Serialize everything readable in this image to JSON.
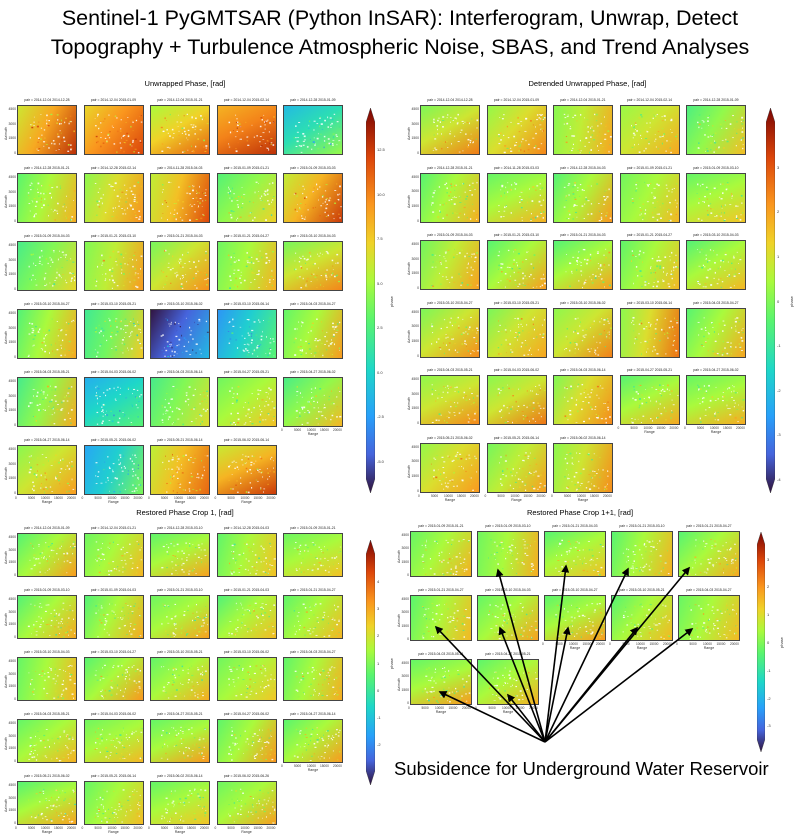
{
  "title": "Sentinel-1 PyGMTSAR (Python InSAR): Interferogram, Unwrap, Detect\nTopography + Turbulence Atmospheric Noise, SBAS, and Trend Analyses",
  "annotation": "Subsidence for Underground Water Reservoir",
  "colors": {
    "accent": "#000000"
  },
  "chart_data": [
    {
      "type": "heatmap",
      "title": "Unwrapped Phase, [rad]",
      "xlabel": "Range",
      "ylabel": "Azimuth",
      "x_ticks": [
        "0",
        "5000",
        "10000",
        "15000",
        "20000"
      ],
      "y_ticks": [
        "4500",
        "3000",
        "1500",
        "0"
      ],
      "colorbar_ticks": [
        "12.5",
        "10.0",
        "7.5",
        "5.0",
        "2.5",
        "0.0",
        "-2.5",
        "-5.0"
      ],
      "colorbar_label": "phase",
      "clim": [
        -6,
        14
      ],
      "columns": 5,
      "pairs": [
        {
          "label": "pair = 2014-12-04 2014-12-28",
          "level": 0.72
        },
        {
          "label": "pair = 2014-12-04 2015-01-09",
          "level": 0.75
        },
        {
          "label": "pair = 2014-12-04 2015-01-21",
          "level": 0.65
        },
        {
          "label": "pair = 2014-12-04 2015-02-14",
          "level": 0.78
        },
        {
          "label": "pair = 2014-12-28 2015-01-09",
          "level": 0.35
        },
        {
          "label": "pair = 2014-12-28 2015-01-21",
          "level": 0.55
        },
        {
          "label": "pair = 2014-12-28 2015-02-14",
          "level": 0.62
        },
        {
          "label": "pair = 2014-11-28 2015-04-03",
          "level": 0.68
        },
        {
          "label": "pair = 2015-01-09 2015-01-21",
          "level": 0.52
        },
        {
          "label": "pair = 2015-01-09 2015-03-03",
          "level": 0.7
        },
        {
          "label": "pair = 2015-01-09 2015-04-03",
          "level": 0.5
        },
        {
          "label": "pair = 2015-01-21 2015-03-10",
          "level": 0.58
        },
        {
          "label": "pair = 2015-01-21 2015-04-03",
          "level": 0.6
        },
        {
          "label": "pair = 2015-01-21 2015-04-27",
          "level": 0.55
        },
        {
          "label": "pair = 2015-03-10 2015-04-03",
          "level": 0.6
        },
        {
          "label": "pair = 2015-03-10 2015-04-27",
          "level": 0.55
        },
        {
          "label": "pair = 2015-03-10 2015-05-21",
          "level": 0.48
        },
        {
          "label": "pair = 2015-03-10 2015-06-02",
          "level": 0.1
        },
        {
          "label": "pair = 2015-03-10 2015-06-14",
          "level": 0.3
        },
        {
          "label": "pair = 2015-04-03 2015-04-27",
          "level": 0.55
        },
        {
          "label": "pair = 2015-04-03 2015-05-21",
          "level": 0.52
        },
        {
          "label": "pair = 2015-04-03 2015-06-02",
          "level": 0.32
        },
        {
          "label": "pair = 2015-04-03 2015-06-14",
          "level": 0.5
        },
        {
          "label": "pair = 2015-04-27 2015-05-21",
          "level": 0.55
        },
        {
          "label": "pair = 2015-04-27 2015-06-02",
          "level": 0.52
        },
        {
          "label": "pair = 2015-04-27 2015-06-14",
          "level": 0.6
        },
        {
          "label": "pair = 2015-05-21 2015-06-02",
          "level": 0.3
        },
        {
          "label": "pair = 2015-05-21 2015-06-14",
          "level": 0.68
        },
        {
          "label": "pair = 2015-06-02 2015-06-14",
          "level": 0.7
        }
      ]
    },
    {
      "type": "heatmap",
      "title": "Detrended Unwrapped Phase, [rad]",
      "xlabel": "Range",
      "ylabel": "Azimuth",
      "x_ticks": [
        "0",
        "5000",
        "10000",
        "15000",
        "20000"
      ],
      "y_ticks": [
        "4500",
        "3000",
        "1500",
        "0"
      ],
      "colorbar_ticks": [
        "3",
        "2",
        "1",
        "0",
        "-1",
        "-2",
        "-3",
        "-4"
      ],
      "colorbar_label": "phase",
      "clim": [
        -4,
        4
      ],
      "columns": 5,
      "pairs": [
        {
          "label": "pair = 2014-12-04 2014-12-28",
          "level": 0.6
        },
        {
          "label": "pair = 2014-12-04 2015-01-09",
          "level": 0.62
        },
        {
          "label": "pair = 2014-12-04 2015-01-21",
          "level": 0.58
        },
        {
          "label": "pair = 2014-12-04 2015-02-14",
          "level": 0.6
        },
        {
          "label": "pair = 2014-12-28 2015-01-09",
          "level": 0.52
        },
        {
          "label": "pair = 2014-12-28 2015-01-21",
          "level": 0.55
        },
        {
          "label": "pair = 2014-11-28 2015-03-03",
          "level": 0.55
        },
        {
          "label": "pair = 2014-12-28 2015-04-03",
          "level": 0.55
        },
        {
          "label": "pair = 2015-01-09 2015-01-21",
          "level": 0.55
        },
        {
          "label": "pair = 2015-01-09 2015-03-10",
          "level": 0.55
        },
        {
          "label": "pair = 2015-01-09 2015-04-03",
          "level": 0.58
        },
        {
          "label": "pair = 2015-01-21 2015-03-10",
          "level": 0.55
        },
        {
          "label": "pair = 2015-01-21 2015-04-03",
          "level": 0.55
        },
        {
          "label": "pair = 2015-01-21 2015-04-27",
          "level": 0.55
        },
        {
          "label": "pair = 2015-03-10 2015-04-03",
          "level": 0.55
        },
        {
          "label": "pair = 2015-03-10 2015-04-27",
          "level": 0.6
        },
        {
          "label": "pair = 2015-03-10 2015-05-21",
          "level": 0.6
        },
        {
          "label": "pair = 2015-03-10 2015-06-02",
          "level": 0.6
        },
        {
          "label": "pair = 2015-03-10 2015-06-14",
          "level": 0.62
        },
        {
          "label": "pair = 2015-04-03 2015-04-27",
          "level": 0.55
        },
        {
          "label": "pair = 2015-04-03 2015-05-21",
          "level": 0.6
        },
        {
          "label": "pair = 2015-04-03 2015-06-02",
          "level": 0.6
        },
        {
          "label": "pair = 2015-04-03 2015-06-14",
          "level": 0.62
        },
        {
          "label": "pair = 2015-04-27 2015-05-21",
          "level": 0.55
        },
        {
          "label": "pair = 2015-04-27 2015-06-02",
          "level": 0.55
        },
        {
          "label": "pair = 2015-05-21 2015-06-02",
          "level": 0.62
        },
        {
          "label": "pair = 2015-05-21 2015-06-14",
          "level": 0.58
        },
        {
          "label": "pair = 2015-06-02 2015-06-14",
          "level": 0.6
        }
      ]
    },
    {
      "type": "heatmap",
      "title": "Restored Phase Crop 1, [rad]",
      "xlabel": "Range",
      "ylabel": "Azimuth",
      "x_ticks": [
        "0",
        "5000",
        "10000",
        "15000",
        "20000"
      ],
      "y_ticks": [
        "4500",
        "3000",
        "1500",
        "0"
      ],
      "colorbar_ticks": [
        "4",
        "3",
        "2",
        "1",
        "0",
        "-1",
        "-2"
      ],
      "colorbar_label": "phase",
      "clim": [
        -3,
        5
      ],
      "columns": 5,
      "pairs": [
        {
          "label": "pair = 2014-12-04 2015-01-09",
          "level": 0.55
        },
        {
          "label": "pair = 2014-12-04 2015-01-21",
          "level": 0.55
        },
        {
          "label": "pair = 2014-12-28 2015-03-10",
          "level": 0.55
        },
        {
          "label": "pair = 2014-12-28 2015-04-03",
          "level": 0.55
        },
        {
          "label": "pair = 2015-01-09 2015-01-21",
          "level": 0.55
        },
        {
          "label": "pair = 2015-01-09 2015-03-10",
          "level": 0.55
        },
        {
          "label": "pair = 2015-01-09 2015-04-03",
          "level": 0.55
        },
        {
          "label": "pair = 2015-01-21 2015-03-10",
          "level": 0.55
        },
        {
          "label": "pair = 2015-01-21 2015-04-03",
          "level": 0.55
        },
        {
          "label": "pair = 2015-01-21 2015-04-27",
          "level": 0.55
        },
        {
          "label": "pair = 2015-03-10 2015-04-03",
          "level": 0.55
        },
        {
          "label": "pair = 2015-03-10 2015-04-27",
          "level": 0.55
        },
        {
          "label": "pair = 2015-03-10 2015-05-21",
          "level": 0.55
        },
        {
          "label": "pair = 2015-03-10 2015-06-02",
          "level": 0.55
        },
        {
          "label": "pair = 2015-04-03 2015-04-27",
          "level": 0.55
        },
        {
          "label": "pair = 2015-04-03 2015-05-21",
          "level": 0.55
        },
        {
          "label": "pair = 2015-04-03 2015-06-02",
          "level": 0.55
        },
        {
          "label": "pair = 2015-04-27 2015-05-21",
          "level": 0.55
        },
        {
          "label": "pair = 2015-04-27 2015-06-02",
          "level": 0.55
        },
        {
          "label": "pair = 2015-04-27 2015-06-14",
          "level": 0.55
        },
        {
          "label": "pair = 2015-05-21 2015-06-02",
          "level": 0.55
        },
        {
          "label": "pair = 2015-05-21 2015-06-14",
          "level": 0.55
        },
        {
          "label": "pair = 2015-06-02 2015-06-14",
          "level": 0.55
        },
        {
          "label": "pair = 2015-06-02 2015-06-26",
          "level": 0.55
        }
      ]
    },
    {
      "type": "heatmap",
      "title": "Restored Phase Crop 1+1, [rad]",
      "xlabel": "Range",
      "ylabel": "Azimuth",
      "x_ticks": [
        "0",
        "5000",
        "10000",
        "15000",
        "20000"
      ],
      "y_ticks": [
        "4500",
        "3000",
        "1500",
        "0"
      ],
      "colorbar_ticks": [
        "3",
        "2",
        "1",
        "0",
        "-1",
        "-2",
        "-3"
      ],
      "colorbar_label": "phase",
      "clim": [
        -3.5,
        3.5
      ],
      "columns": 5,
      "pairs": [
        {
          "label": "pair = 2015-01-09 2015-01-21",
          "level": 0.55
        },
        {
          "label": "pair = 2015-01-09 2015-03-10",
          "level": 0.55
        },
        {
          "label": "pair = 2015-01-21 2015-04-03",
          "level": 0.55
        },
        {
          "label": "pair = 2015-01-21 2015-03-10",
          "level": 0.55
        },
        {
          "label": "pair = 2015-01-21 2015-04-27",
          "level": 0.55
        },
        {
          "label": "pair = 2015-01-21 2015-04-27",
          "level": 0.55
        },
        {
          "label": "pair = 2015-03-10 2015-04-03",
          "level": 0.55
        },
        {
          "label": "pair = 2015-03-10 2015-04-27",
          "level": 0.55
        },
        {
          "label": "pair = 2015-03-10 2015-05-21",
          "level": 0.55
        },
        {
          "label": "pair = 2015-04-03 2015-04-27",
          "level": 0.55
        },
        {
          "label": "pair = 2015-04-03 2015-05-21",
          "level": 0.55
        },
        {
          "label": "pair = 2015-04-27 2015-05-21",
          "level": 0.55
        }
      ]
    }
  ]
}
